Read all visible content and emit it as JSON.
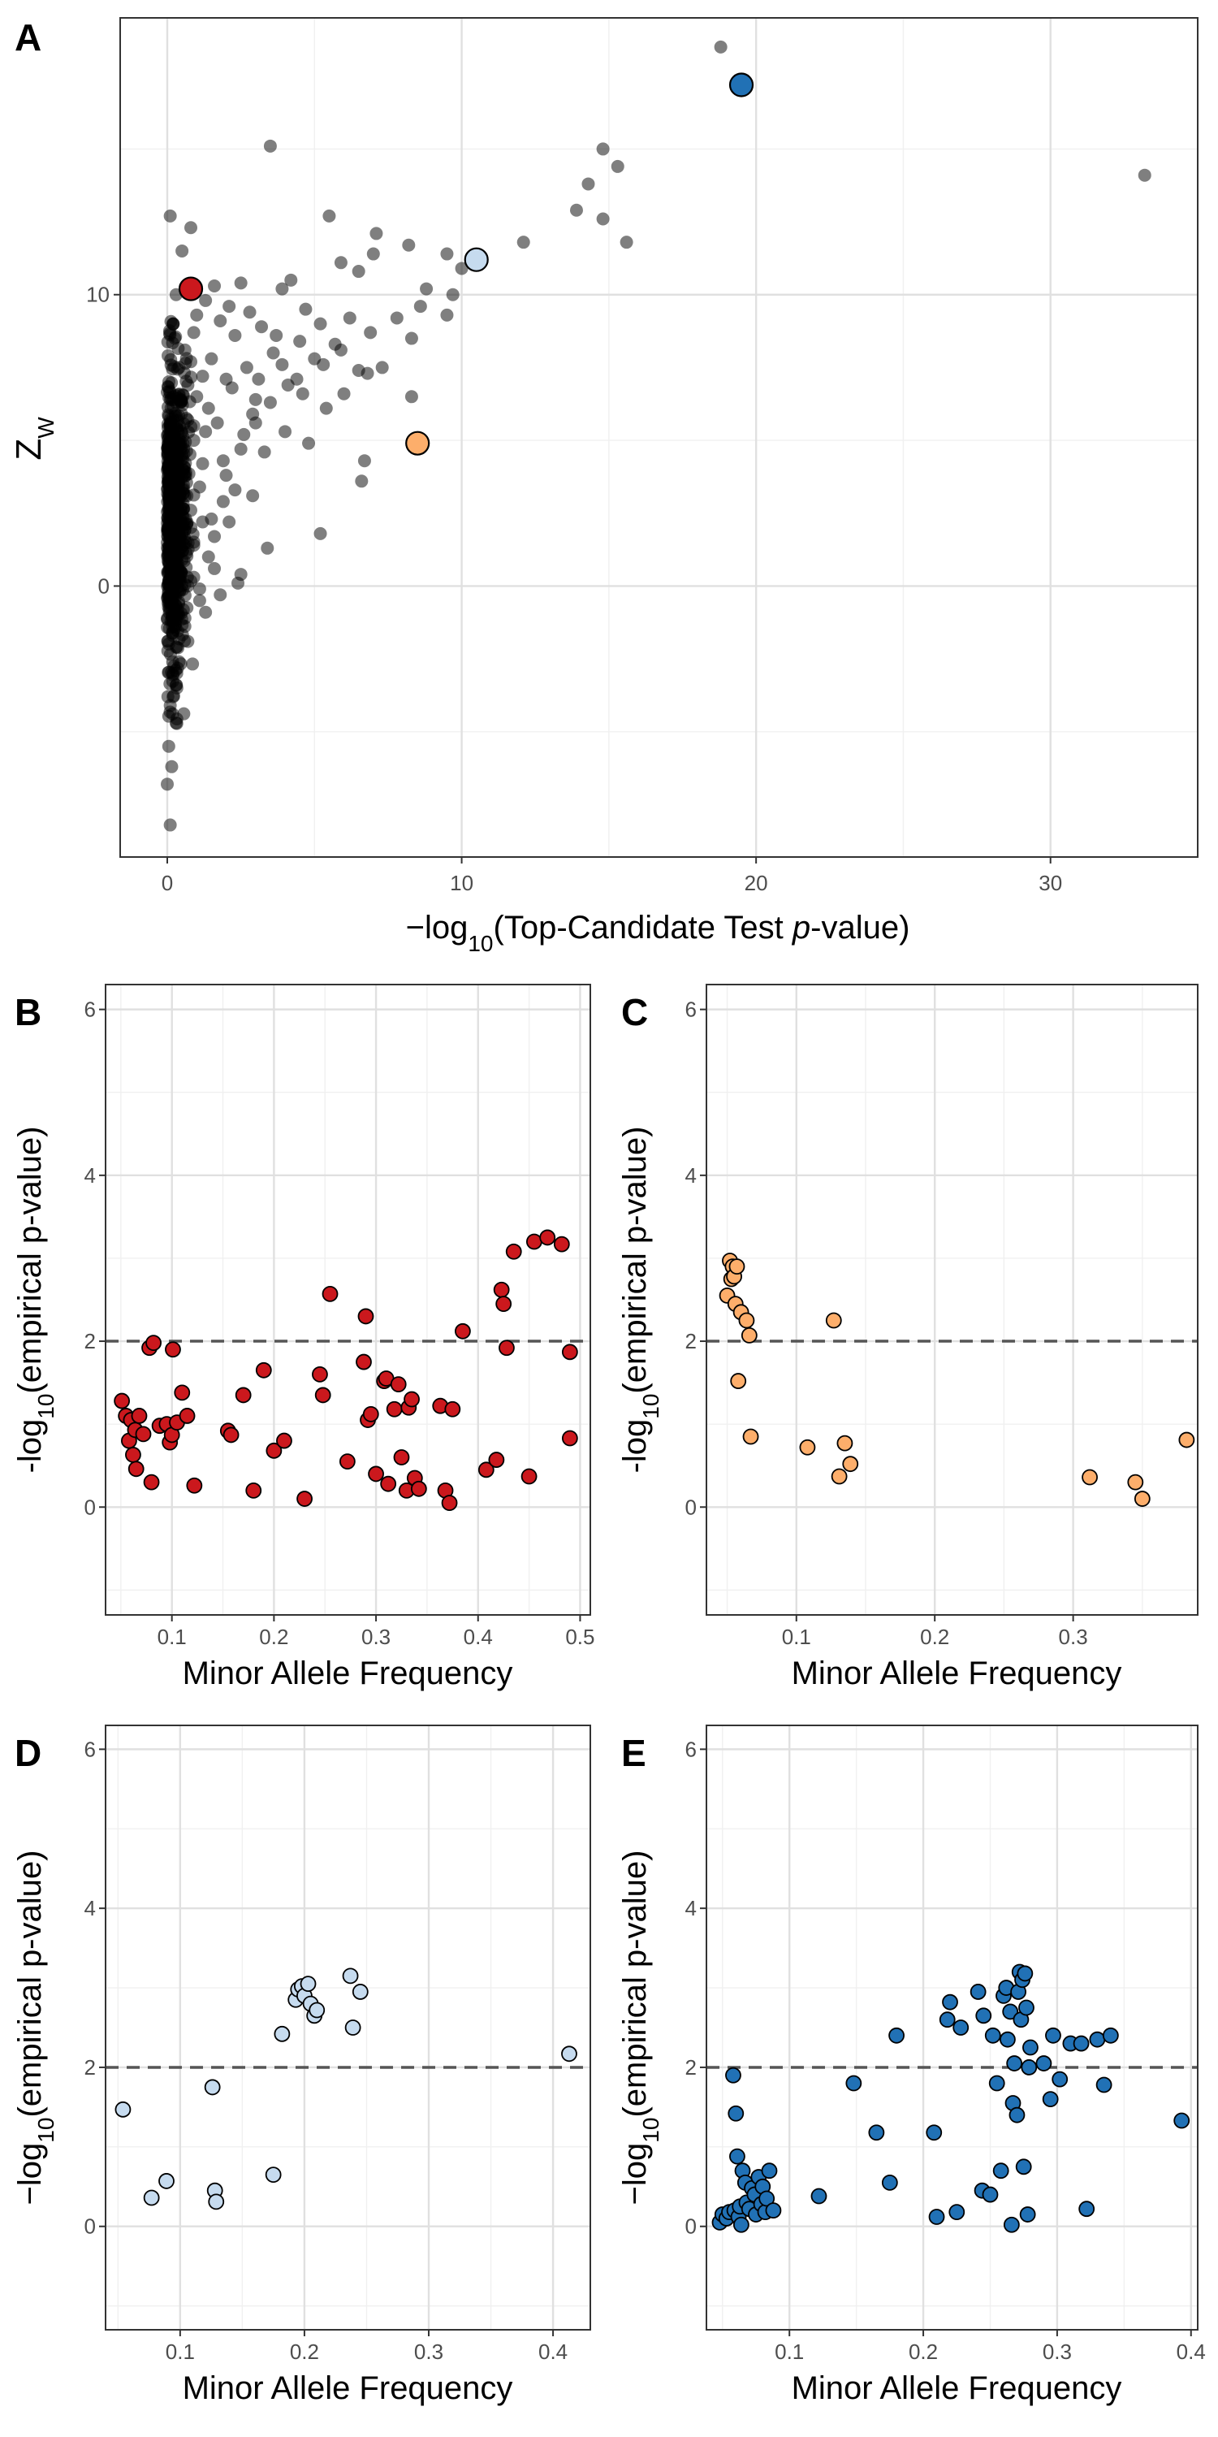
{
  "chart_data": [
    {
      "panel": "A",
      "type": "scatter",
      "xlabel": "−log10(Top-Candidate Test p-value)",
      "ylabel": "ZW",
      "xlim": [
        -1.6,
        35
      ],
      "ylim": [
        -9.3,
        19.5
      ],
      "xticks": [
        0,
        10,
        20,
        30
      ],
      "yticks": [
        0,
        10
      ],
      "grid": true,
      "background_points_color": "#000000",
      "background_points_opacity": 0.5,
      "highlighted_points": [
        {
          "x": 0.8,
          "y": 10.2,
          "color": "#cb181d"
        },
        {
          "x": 8.5,
          "y": 4.9,
          "color": "#fdae6b"
        },
        {
          "x": 10.5,
          "y": 11.2,
          "color": "#c6dbef"
        },
        {
          "x": 19.5,
          "y": 17.2,
          "color": "#2171b5"
        }
      ],
      "background_points": [
        [
          18.8,
          18.5
        ],
        [
          33.2,
          14.1
        ],
        [
          14.8,
          15.0
        ],
        [
          15.3,
          14.4
        ],
        [
          14.3,
          13.8
        ],
        [
          13.9,
          12.9
        ],
        [
          14.8,
          12.6
        ],
        [
          15.6,
          11.8
        ],
        [
          12.1,
          11.8
        ],
        [
          3.5,
          15.1
        ],
        [
          0.1,
          12.7
        ],
        [
          0.8,
          12.3
        ],
        [
          0.5,
          11.5
        ],
        [
          5.5,
          12.7
        ],
        [
          7.1,
          12.1
        ],
        [
          8.2,
          11.7
        ],
        [
          9.5,
          11.4
        ],
        [
          10.0,
          10.9
        ],
        [
          9.7,
          10.0
        ],
        [
          8.6,
          9.6
        ],
        [
          8.8,
          10.2
        ],
        [
          9.5,
          9.3
        ],
        [
          6.5,
          10.8
        ],
        [
          5.9,
          11.1
        ],
        [
          7.0,
          11.4
        ],
        [
          4.2,
          10.5
        ],
        [
          3.9,
          10.2
        ],
        [
          2.5,
          10.4
        ],
        [
          1.6,
          10.3
        ],
        [
          1.3,
          9.8
        ],
        [
          2.8,
          9.4
        ],
        [
          4.7,
          9.5
        ],
        [
          5.2,
          9.0
        ],
        [
          6.2,
          9.2
        ],
        [
          6.9,
          8.7
        ],
        [
          7.8,
          9.2
        ],
        [
          8.3,
          8.5
        ],
        [
          5.9,
          8.1
        ],
        [
          5.3,
          7.6
        ],
        [
          6.5,
          7.4
        ],
        [
          6.8,
          7.3
        ],
        [
          8.3,
          6.5
        ],
        [
          4.4,
          7.1
        ],
        [
          3.5,
          6.3
        ],
        [
          3.0,
          5.6
        ],
        [
          2.5,
          4.7
        ],
        [
          4.8,
          4.9
        ],
        [
          5.4,
          6.1
        ],
        [
          2.0,
          3.8
        ],
        [
          1.9,
          2.9
        ],
        [
          2.9,
          3.1
        ],
        [
          1.2,
          4.2
        ],
        [
          1.5,
          2.3
        ],
        [
          2.1,
          2.2
        ],
        [
          3.4,
          1.3
        ],
        [
          2.5,
          0.4
        ],
        [
          2.4,
          0.1
        ],
        [
          5.2,
          1.8
        ],
        [
          6.7,
          4.3
        ],
        [
          6.6,
          3.6
        ],
        [
          0.3,
          -4.7
        ],
        [
          0.05,
          -5.5
        ],
        [
          0.15,
          -6.2
        ],
        [
          0.0,
          -6.8
        ],
        [
          0.1,
          -8.2
        ],
        [
          0.3,
          -3.4
        ],
        [
          0.7,
          -1.9
        ],
        [
          1.3,
          -0.9
        ],
        [
          1.8,
          -0.3
        ],
        [
          1.1,
          -0.5
        ],
        [
          0.9,
          8.7
        ],
        [
          1.8,
          9.1
        ],
        [
          2.3,
          8.6
        ],
        [
          3.2,
          8.9
        ],
        [
          3.6,
          8.0
        ],
        [
          4.5,
          8.4
        ],
        [
          2.7,
          7.5
        ],
        [
          1.5,
          7.8
        ],
        [
          3.9,
          7.6
        ],
        [
          4.6,
          6.6
        ],
        [
          3.0,
          6.4
        ],
        [
          2.2,
          6.8
        ],
        [
          1.4,
          6.1
        ],
        [
          2.6,
          5.2
        ],
        [
          3.3,
          4.6
        ],
        [
          1.7,
          5.6
        ],
        [
          0.9,
          5.0
        ],
        [
          1.1,
          3.4
        ],
        [
          1.6,
          1.7
        ],
        [
          0.8,
          2.6
        ],
        [
          0.5,
          0.9
        ],
        [
          0.6,
          -1.1
        ],
        [
          0.4,
          -2.6
        ],
        [
          0.2,
          -3.8
        ],
        [
          1.9,
          4.3
        ],
        [
          2.9,
          5.9
        ],
        [
          4.1,
          6.9
        ],
        [
          5.0,
          7.8
        ],
        [
          5.7,
          8.3
        ],
        [
          6.0,
          6.6
        ],
        [
          7.3,
          7.5
        ],
        [
          3.7,
          8.6
        ],
        [
          2.1,
          9.6
        ],
        [
          1.0,
          9.3
        ],
        [
          0.6,
          8.1
        ],
        [
          0.7,
          6.9
        ],
        [
          1.2,
          7.2
        ],
        [
          2.0,
          7.1
        ],
        [
          3.1,
          7.1
        ],
        [
          4.0,
          5.3
        ],
        [
          2.3,
          3.3
        ],
        [
          1.4,
          1.0
        ],
        [
          0.9,
          0.3
        ],
        [
          1.6,
          0.6
        ],
        [
          0.3,
          10.0
        ],
        [
          0.2,
          9.0
        ],
        [
          0.4,
          7.5
        ],
        [
          0.3,
          6.3
        ],
        [
          0.2,
          5.1
        ],
        [
          0.4,
          3.9
        ],
        [
          0.2,
          2.7
        ],
        [
          0.3,
          1.6
        ],
        [
          0.4,
          0.2
        ],
        [
          0.2,
          -1.2
        ],
        [
          0.3,
          -2.1
        ],
        [
          0.2,
          -3.0
        ],
        [
          0.1,
          -4.1
        ],
        [
          0.5,
          4.5
        ],
        [
          0.6,
          3.1
        ],
        [
          0.5,
          1.8
        ],
        [
          0.7,
          5.7
        ],
        [
          0.8,
          7.7
        ],
        [
          1.0,
          6.5
        ],
        [
          1.3,
          5.3
        ],
        [
          1.2,
          2.2
        ],
        [
          0.9,
          1.4
        ],
        [
          1.1,
          -0.1
        ]
      ],
      "dense_column": {
        "x_min": 0.0,
        "x_max": 0.9,
        "y_min": -4.8,
        "y_max": 9.4,
        "n": 650
      }
    },
    {
      "panel": "B",
      "type": "scatter",
      "xlabel": "Minor Allele Frequency",
      "ylabel": "-log10(empirical p-value)",
      "xlim": [
        0.035,
        0.51
      ],
      "ylim": [
        -1.3,
        6.3
      ],
      "xticks": [
        0.1,
        0.2,
        0.3,
        0.4,
        0.5
      ],
      "xtick_labels": [
        "0.1",
        "0.2",
        "0.3",
        "0.4",
        "0.5"
      ],
      "yticks": [
        0,
        2,
        4,
        6
      ],
      "threshold": 2,
      "point_color": "#cb181d",
      "points": [
        [
          0.051,
          1.28
        ],
        [
          0.055,
          1.1
        ],
        [
          0.058,
          0.8
        ],
        [
          0.06,
          1.05
        ],
        [
          0.062,
          0.63
        ],
        [
          0.064,
          0.93
        ],
        [
          0.065,
          0.46
        ],
        [
          0.068,
          1.1
        ],
        [
          0.072,
          0.88
        ],
        [
          0.078,
          1.92
        ],
        [
          0.08,
          0.3
        ],
        [
          0.082,
          1.98
        ],
        [
          0.088,
          0.98
        ],
        [
          0.095,
          1.0
        ],
        [
          0.098,
          0.78
        ],
        [
          0.1,
          0.87
        ],
        [
          0.101,
          1.9
        ],
        [
          0.105,
          1.02
        ],
        [
          0.11,
          1.38
        ],
        [
          0.115,
          1.1
        ],
        [
          0.122,
          0.26
        ],
        [
          0.155,
          0.92
        ],
        [
          0.158,
          0.87
        ],
        [
          0.17,
          1.35
        ],
        [
          0.18,
          0.2
        ],
        [
          0.19,
          1.65
        ],
        [
          0.2,
          0.68
        ],
        [
          0.21,
          0.8
        ],
        [
          0.23,
          0.1
        ],
        [
          0.245,
          1.6
        ],
        [
          0.248,
          1.35
        ],
        [
          0.255,
          2.57
        ],
        [
          0.272,
          0.55
        ],
        [
          0.288,
          1.75
        ],
        [
          0.29,
          2.3
        ],
        [
          0.292,
          1.05
        ],
        [
          0.295,
          1.12
        ],
        [
          0.3,
          0.4
        ],
        [
          0.308,
          1.52
        ],
        [
          0.31,
          1.55
        ],
        [
          0.312,
          0.28
        ],
        [
          0.318,
          1.18
        ],
        [
          0.322,
          1.48
        ],
        [
          0.325,
          0.6
        ],
        [
          0.33,
          0.2
        ],
        [
          0.332,
          1.2
        ],
        [
          0.335,
          1.3
        ],
        [
          0.338,
          0.35
        ],
        [
          0.342,
          0.22
        ],
        [
          0.363,
          1.22
        ],
        [
          0.368,
          0.2
        ],
        [
          0.372,
          0.05
        ],
        [
          0.375,
          1.18
        ],
        [
          0.385,
          2.12
        ],
        [
          0.408,
          0.45
        ],
        [
          0.418,
          0.57
        ],
        [
          0.423,
          2.62
        ],
        [
          0.425,
          2.45
        ],
        [
          0.428,
          1.92
        ],
        [
          0.435,
          3.08
        ],
        [
          0.45,
          0.37
        ],
        [
          0.455,
          3.2
        ],
        [
          0.468,
          3.25
        ],
        [
          0.482,
          3.17
        ],
        [
          0.49,
          1.87
        ],
        [
          0.49,
          0.83
        ]
      ]
    },
    {
      "panel": "C",
      "type": "scatter",
      "xlabel": "Minor Allele Frequency",
      "ylabel": "-log10(empirical p-value)",
      "xlim": [
        0.035,
        0.39
      ],
      "ylim": [
        -1.3,
        6.3
      ],
      "xticks": [
        0.1,
        0.2,
        0.3
      ],
      "xtick_labels": [
        "0.1",
        "0.2",
        "0.3"
      ],
      "yticks": [
        0,
        2,
        4,
        6
      ],
      "threshold": 2,
      "point_color": "#fdae6b",
      "points": [
        [
          0.05,
          2.55
        ],
        [
          0.052,
          2.97
        ],
        [
          0.053,
          2.75
        ],
        [
          0.054,
          2.9
        ],
        [
          0.055,
          2.78
        ],
        [
          0.056,
          2.45
        ],
        [
          0.057,
          2.9
        ],
        [
          0.058,
          1.52
        ],
        [
          0.06,
          2.35
        ],
        [
          0.064,
          2.25
        ],
        [
          0.066,
          2.07
        ],
        [
          0.067,
          0.85
        ],
        [
          0.108,
          0.72
        ],
        [
          0.127,
          2.25
        ],
        [
          0.131,
          0.37
        ],
        [
          0.135,
          0.77
        ],
        [
          0.139,
          0.52
        ],
        [
          0.312,
          0.36
        ],
        [
          0.345,
          0.3
        ],
        [
          0.35,
          0.1
        ],
        [
          0.382,
          0.81
        ]
      ]
    },
    {
      "panel": "D",
      "type": "scatter",
      "xlabel": "Minor Allele Frequency",
      "ylabel": "−log10(empirical p-value)",
      "xlim": [
        0.04,
        0.43
      ],
      "ylim": [
        -1.3,
        6.3
      ],
      "xticks": [
        0.1,
        0.2,
        0.3,
        0.4
      ],
      "xtick_labels": [
        "0.1",
        "0.2",
        "0.3",
        "0.4"
      ],
      "yticks": [
        0,
        2,
        4,
        6
      ],
      "threshold": 2,
      "point_color": "#c6dbef",
      "points": [
        [
          0.054,
          1.47
        ],
        [
          0.077,
          0.36
        ],
        [
          0.089,
          0.57
        ],
        [
          0.126,
          1.75
        ],
        [
          0.128,
          0.45
        ],
        [
          0.129,
          0.31
        ],
        [
          0.175,
          0.65
        ],
        [
          0.182,
          2.42
        ],
        [
          0.193,
          2.85
        ],
        [
          0.195,
          2.98
        ],
        [
          0.198,
          3.02
        ],
        [
          0.2,
          2.9
        ],
        [
          0.203,
          3.05
        ],
        [
          0.205,
          2.8
        ],
        [
          0.208,
          2.65
        ],
        [
          0.21,
          2.72
        ],
        [
          0.237,
          3.15
        ],
        [
          0.239,
          2.5
        ],
        [
          0.245,
          2.95
        ],
        [
          0.413,
          2.17
        ]
      ]
    },
    {
      "panel": "E",
      "type": "scatter",
      "xlabel": "Minor Allele Frequency",
      "ylabel": "−log10(empirical p-value)",
      "xlim": [
        0.038,
        0.405
      ],
      "ylim": [
        -1.3,
        6.3
      ],
      "xticks": [
        0.1,
        0.2,
        0.3,
        0.4
      ],
      "xtick_labels": [
        "0.1",
        "0.2",
        "0.3",
        "0.4"
      ],
      "yticks": [
        0,
        2,
        4,
        6
      ],
      "threshold": 2,
      "point_color": "#2171b5",
      "points": [
        [
          0.048,
          0.05
        ],
        [
          0.05,
          0.15
        ],
        [
          0.053,
          0.1
        ],
        [
          0.055,
          0.18
        ],
        [
          0.058,
          1.9
        ],
        [
          0.059,
          0.2
        ],
        [
          0.06,
          1.42
        ],
        [
          0.061,
          0.88
        ],
        [
          0.062,
          0.12
        ],
        [
          0.063,
          0.25
        ],
        [
          0.064,
          0.02
        ],
        [
          0.065,
          0.7
        ],
        [
          0.067,
          0.55
        ],
        [
          0.068,
          0.3
        ],
        [
          0.07,
          0.22
        ],
        [
          0.072,
          0.48
        ],
        [
          0.074,
          0.4
        ],
        [
          0.075,
          0.15
        ],
        [
          0.077,
          0.62
        ],
        [
          0.079,
          0.28
        ],
        [
          0.08,
          0.5
        ],
        [
          0.082,
          0.18
        ],
        [
          0.083,
          0.35
        ],
        [
          0.085,
          0.7
        ],
        [
          0.088,
          0.2
        ],
        [
          0.122,
          0.38
        ],
        [
          0.148,
          1.8
        ],
        [
          0.165,
          1.18
        ],
        [
          0.175,
          0.55
        ],
        [
          0.18,
          2.4
        ],
        [
          0.208,
          1.18
        ],
        [
          0.21,
          0.12
        ],
        [
          0.218,
          2.6
        ],
        [
          0.22,
          2.82
        ],
        [
          0.225,
          0.18
        ],
        [
          0.228,
          2.5
        ],
        [
          0.241,
          2.95
        ],
        [
          0.244,
          0.45
        ],
        [
          0.245,
          2.65
        ],
        [
          0.25,
          0.4
        ],
        [
          0.252,
          2.4
        ],
        [
          0.255,
          1.8
        ],
        [
          0.258,
          0.7
        ],
        [
          0.26,
          2.9
        ],
        [
          0.262,
          3.0
        ],
        [
          0.263,
          2.35
        ],
        [
          0.265,
          2.7
        ],
        [
          0.266,
          0.02
        ],
        [
          0.267,
          1.55
        ],
        [
          0.268,
          2.05
        ],
        [
          0.27,
          1.4
        ],
        [
          0.271,
          2.95
        ],
        [
          0.272,
          3.2
        ],
        [
          0.273,
          2.6
        ],
        [
          0.274,
          3.1
        ],
        [
          0.275,
          0.75
        ],
        [
          0.276,
          3.18
        ],
        [
          0.277,
          2.75
        ],
        [
          0.278,
          0.15
        ],
        [
          0.279,
          2.0
        ],
        [
          0.28,
          2.25
        ],
        [
          0.29,
          2.05
        ],
        [
          0.295,
          1.6
        ],
        [
          0.297,
          2.4
        ],
        [
          0.302,
          1.85
        ],
        [
          0.31,
          2.3
        ],
        [
          0.318,
          2.3
        ],
        [
          0.322,
          0.22
        ],
        [
          0.33,
          2.35
        ],
        [
          0.335,
          1.78
        ],
        [
          0.34,
          2.4
        ],
        [
          0.393,
          1.33
        ]
      ]
    }
  ]
}
